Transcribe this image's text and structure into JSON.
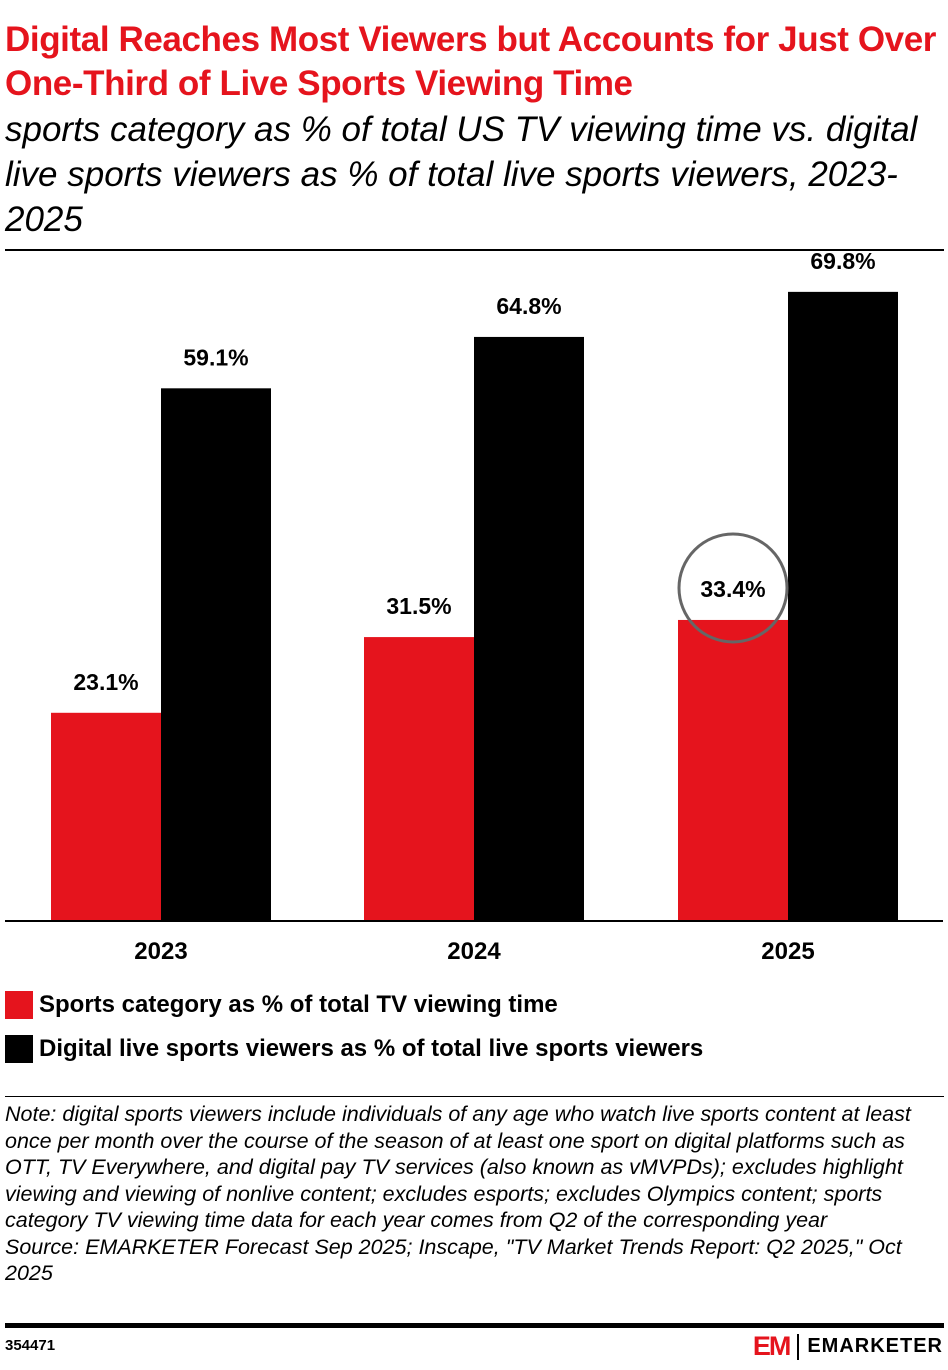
{
  "chart_data": {
    "type": "bar",
    "title": "Digital Reaches Most Viewers but Accounts for Just Over One-Third of Live Sports Viewing Time",
    "subtitle": "sports category as % of total US TV viewing time vs. digital live sports viewers as % of total live sports viewers, 2023-2025",
    "categories": [
      "2023",
      "2024",
      "2025"
    ],
    "series": [
      {
        "name": "Sports category as % of total TV viewing time",
        "values": [
          23.1,
          31.5,
          33.4
        ],
        "labels": [
          "23.1%",
          "31.5%",
          "33.4%"
        ],
        "color": "#e5141d"
      },
      {
        "name": "Digital live sports viewers as % of total live sports viewers",
        "values": [
          59.1,
          64.8,
          69.8
        ],
        "labels": [
          "59.1%",
          "64.8%",
          "69.8%"
        ],
        "color": "#000000"
      }
    ],
    "ylim": [
      0,
      75
    ],
    "grid": false,
    "legend_position": "bottom-left",
    "annotation": {
      "category": "2025",
      "series": 0,
      "shape": "circle",
      "color": "#666666"
    }
  },
  "note": "Note: digital sports viewers include individuals of any age who watch live sports content at least once per month over the course of the season of at least one sport on digital platforms such as OTT, TV Everywhere, and digital pay TV services (also known as vMVPDs); excludes highlight viewing and viewing of nonlive content; excludes esports; excludes Olympics content; sports category TV viewing time data for each year comes from Q2 of the corresponding year",
  "source": "Source: EMARKETER Forecast Sep 2025; Inscape, \"TV Market Trends Report: Q2 2025,\" Oct 2025",
  "chart_id": "354471",
  "brand": {
    "logo": "EM",
    "name": "EMARKETER"
  }
}
